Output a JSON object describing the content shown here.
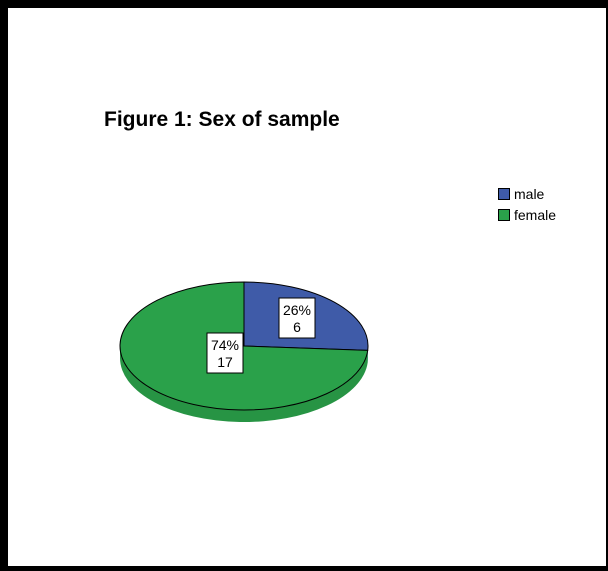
{
  "chart_data": {
    "type": "pie",
    "title": "Figure 1: Sex of sample",
    "slices": [
      {
        "label": "male",
        "value": 6,
        "percent_label": "26%",
        "count_label": "6",
        "color": "#3f5ba8"
      },
      {
        "label": "female",
        "value": 17,
        "percent_label": "74%",
        "count_label": "17",
        "color": "#2aa14a"
      }
    ],
    "legend_position": "top-right",
    "style": "3d"
  }
}
